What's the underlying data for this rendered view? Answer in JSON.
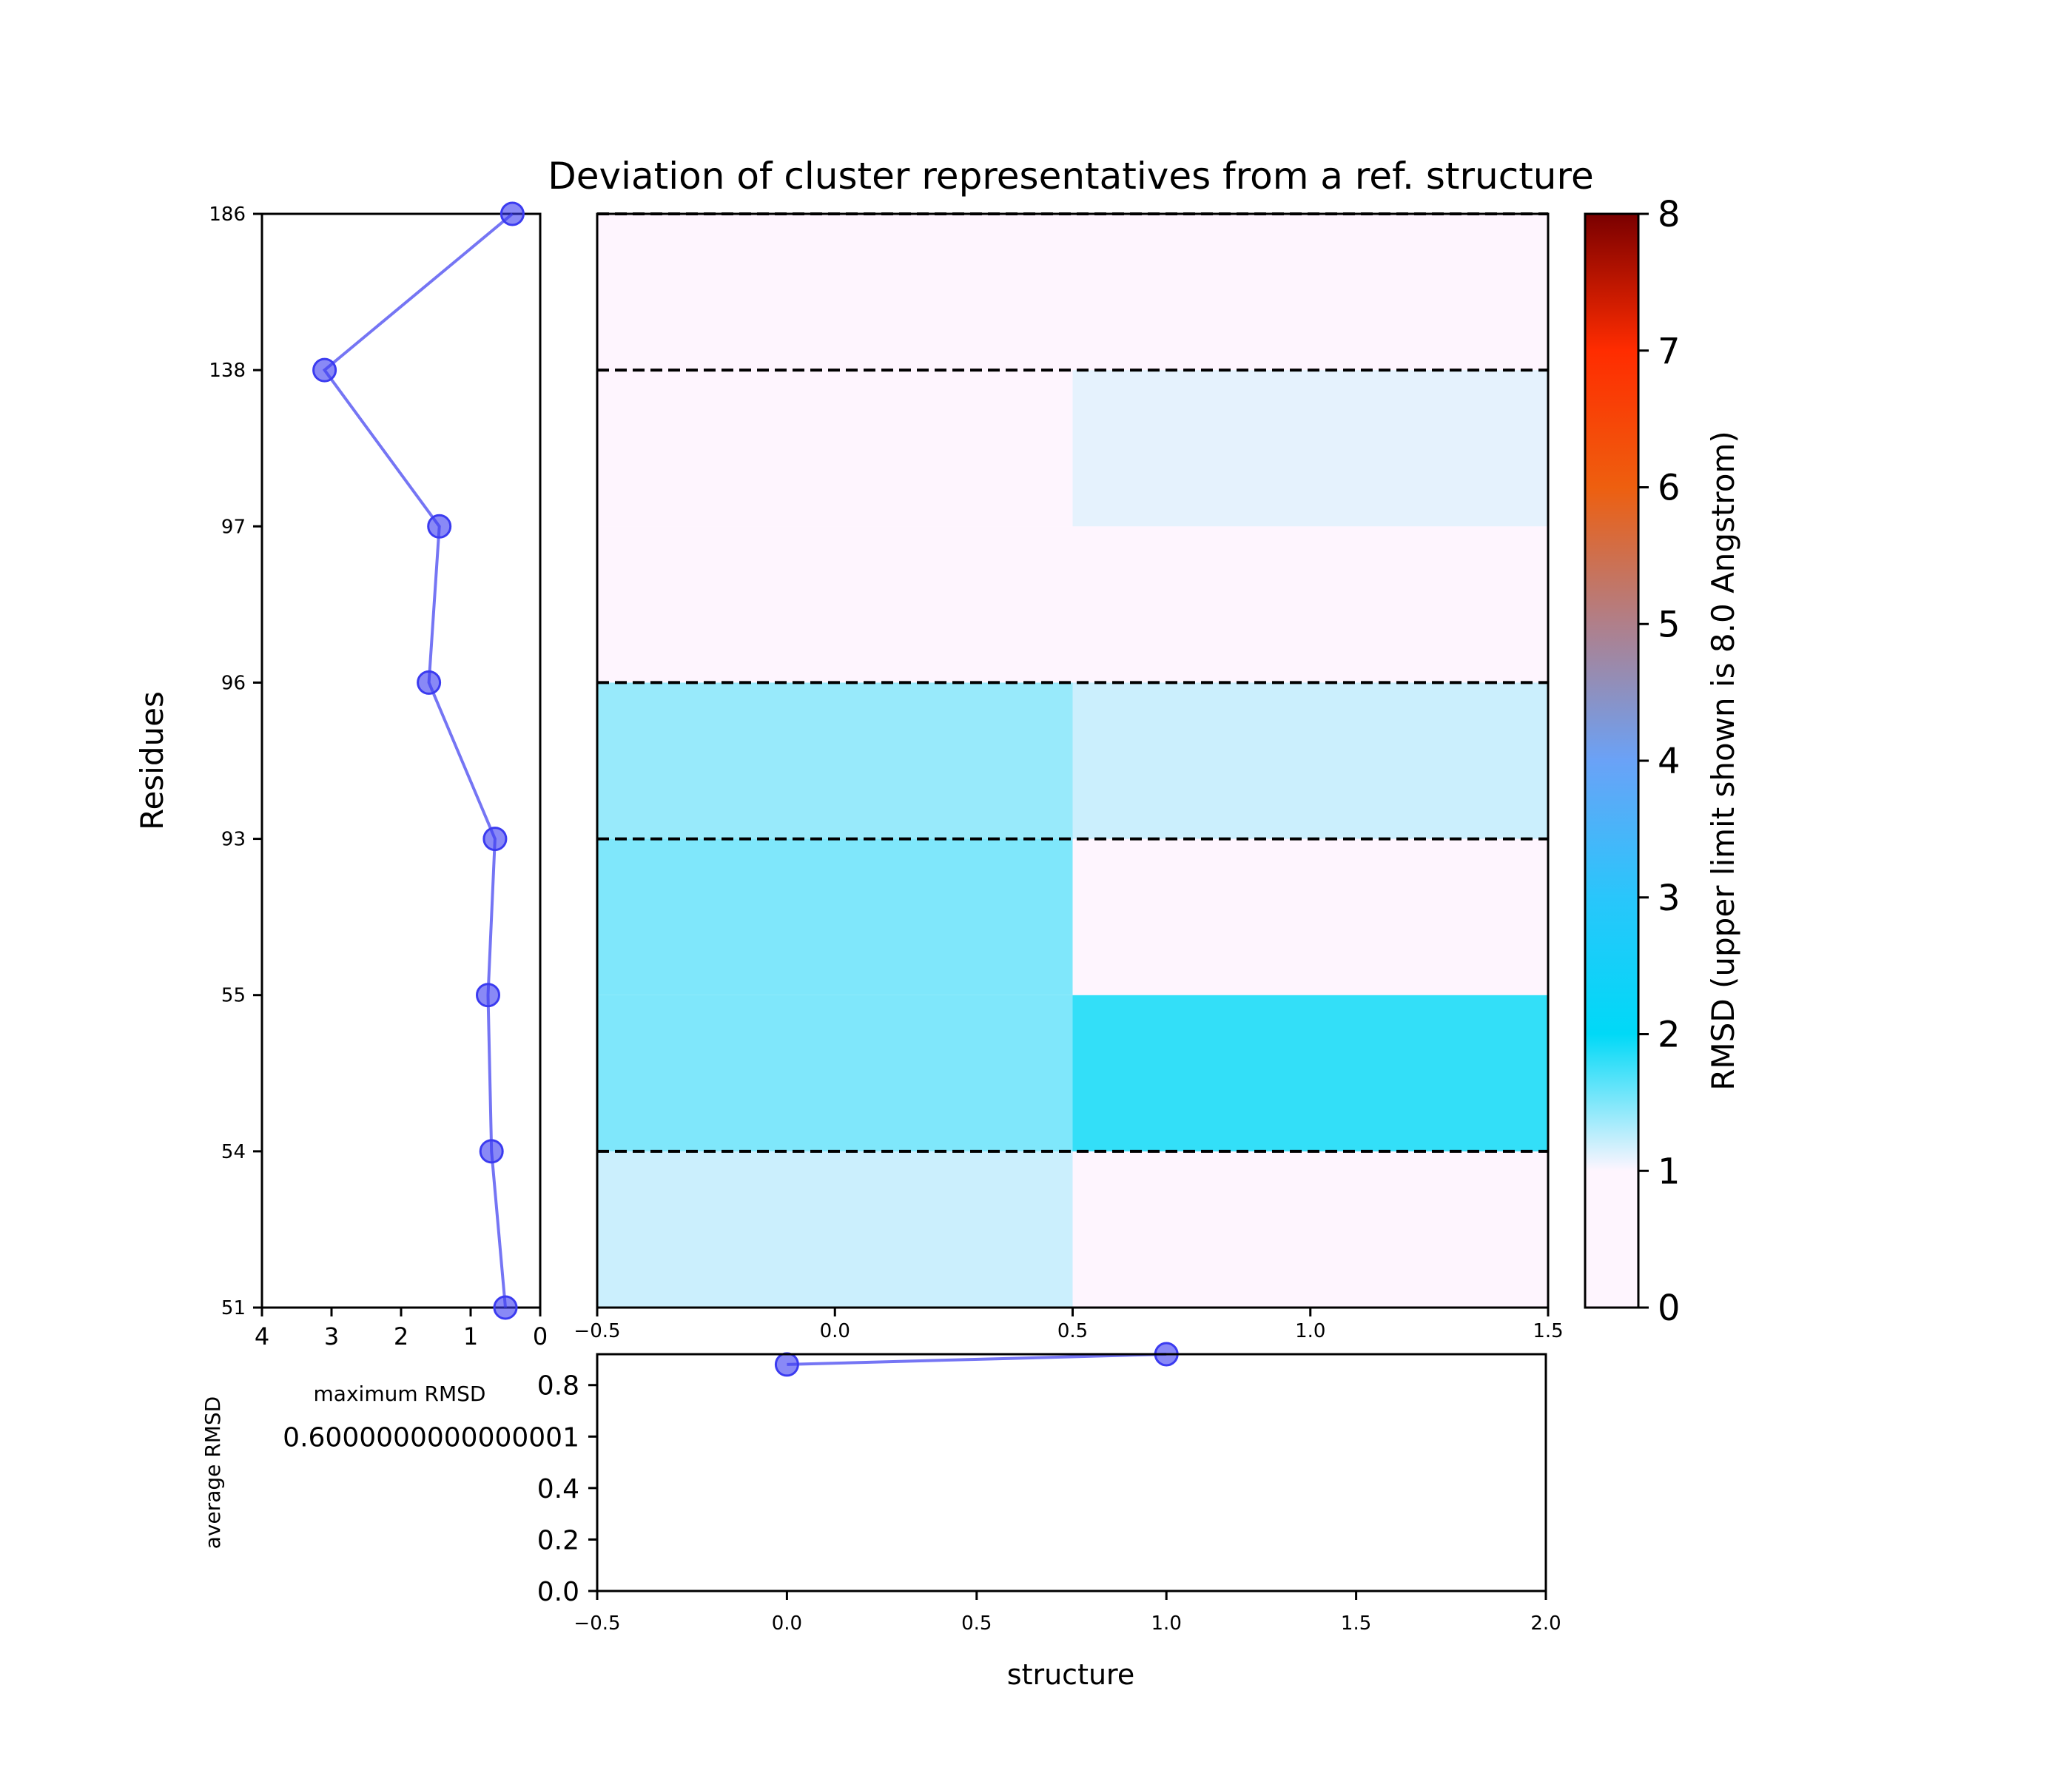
{
  "chart_data": [
    {
      "type": "heatmap",
      "title": "Deviation of cluster representatives from a ref. structure",
      "x_ticks": [
        "−0.5",
        "0.0",
        "0.5",
        "1.0",
        "1.5"
      ],
      "xlim": [
        -0.5,
        1.5
      ],
      "ylim": [
        -0.5,
        6.5
      ],
      "rows": [
        [
          1.2,
          0.8
        ],
        [
          1.5,
          1.8
        ],
        [
          1.5,
          1.0
        ],
        [
          1.4,
          1.2
        ],
        [
          0.0,
          0.8
        ],
        [
          0.3,
          1.1
        ],
        [
          0.4,
          1.0
        ],
        [
          0.2,
          0.2
        ]
      ],
      "dashed_lines_y": [
        6.5,
        5.5,
        3.5,
        2.5,
        0.5
      ],
      "colorbar": {
        "range": [
          0,
          8
        ],
        "ticks": [
          "0",
          "1",
          "2",
          "3",
          "4",
          "5",
          "6",
          "7",
          "8"
        ],
        "label": "RMSD (upper limit shown is 8.0 Angstrom)",
        "colors": [
          "#fef5fe",
          "#fef5fe",
          "#00d9f7",
          "#29c6fb",
          "#6aa2f7",
          "#b07f8a",
          "#ee5f0f",
          "#ff2c00",
          "#7a0000"
        ]
      }
    },
    {
      "type": "line",
      "ylabel": "Residues",
      "xlabel": "maximum RMSD",
      "y_ticks": [
        "51",
        "54",
        "55",
        "93",
        "96",
        "97",
        "138",
        "186"
      ],
      "x_ticks": [
        "4",
        "3",
        "2",
        "1",
        "0"
      ],
      "xlim": [
        4,
        0
      ],
      "points": [
        {
          "x": 0.5,
          "y": 0
        },
        {
          "x": 0.7,
          "y": 1
        },
        {
          "x": 0.75,
          "y": 2
        },
        {
          "x": 0.65,
          "y": 3
        },
        {
          "x": 1.6,
          "y": 4
        },
        {
          "x": 1.45,
          "y": 5
        },
        {
          "x": 3.1,
          "y": 6
        },
        {
          "x": 0.4,
          "y": 7
        }
      ],
      "color": "#3b3bf0"
    },
    {
      "type": "line",
      "xlabel": "structure",
      "ylabel": "average RMSD",
      "x_ticks": [
        "−0.5",
        "0.0",
        "0.5",
        "1.0",
        "1.5",
        "2.0"
      ],
      "y_ticks": [
        "0.0",
        "0.2",
        "0.4",
        "0.6000000000000001",
        "0.8"
      ],
      "xlim": [
        -0.5,
        2.0
      ],
      "ylim": [
        0.0,
        0.92
      ],
      "x": [
        0,
        1
      ],
      "y": [
        0.88,
        0.92
      ],
      "color": "#3b3bf0"
    }
  ]
}
